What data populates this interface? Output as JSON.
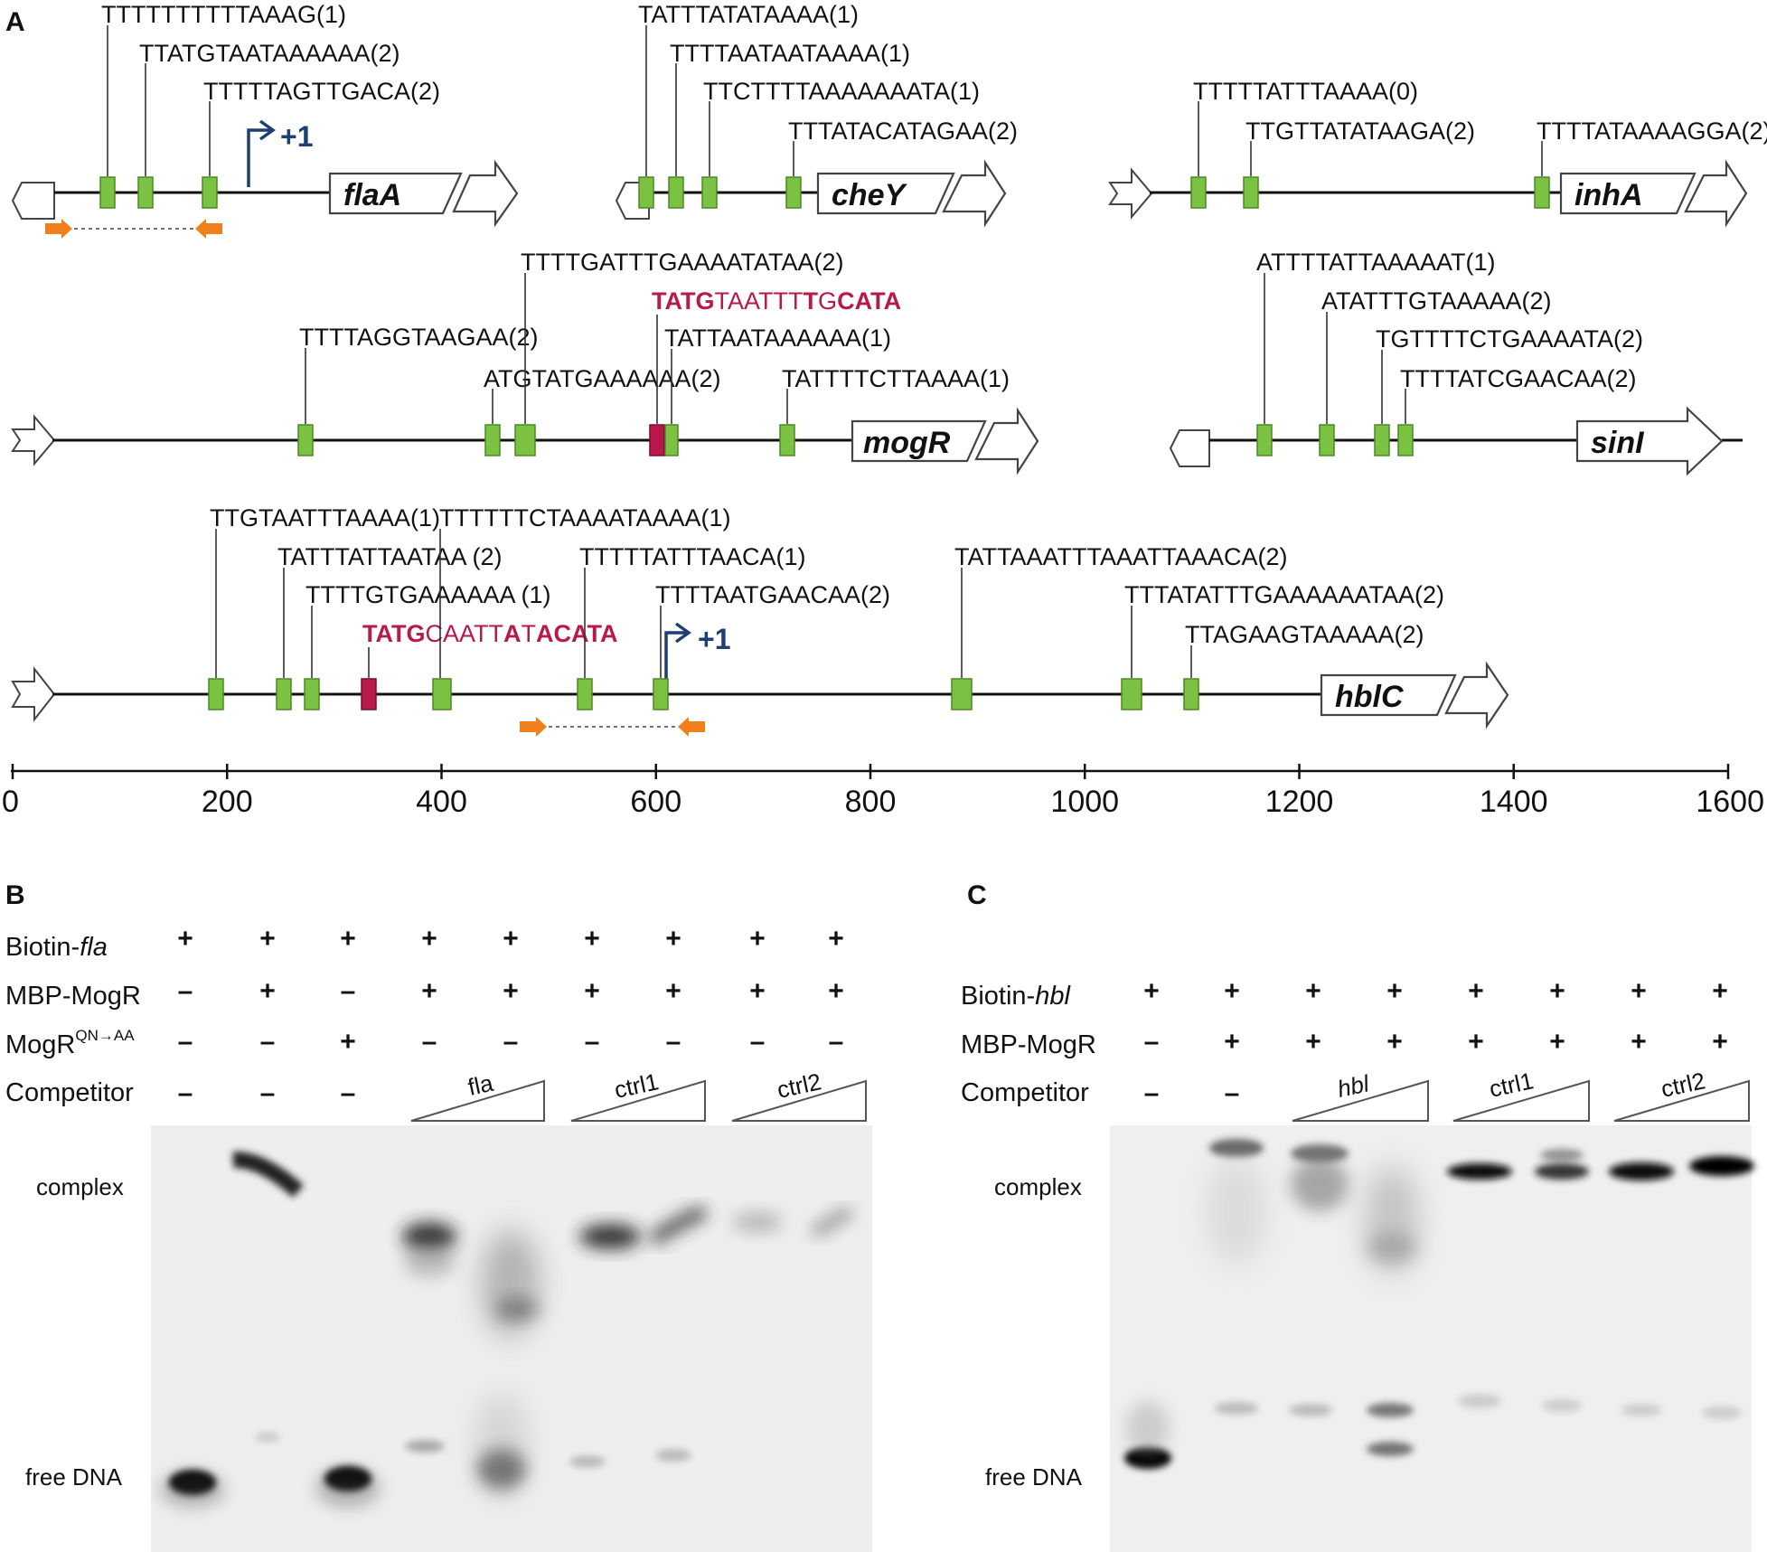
{
  "panels": {
    "a": "A",
    "b": "B",
    "c": "C"
  },
  "colors": {
    "site_green": "#7cc242",
    "site_red": "#b8184a",
    "primer_orange": "#f07f1c",
    "tss_blue": "#1e3f73",
    "highlight": "#b8184a"
  },
  "panel_a": {
    "axis": {
      "min": 0,
      "max": 1600,
      "ticks": [
        "0",
        "200",
        "400",
        "600",
        "800",
        "1000",
        "1200",
        "1400",
        "1600"
      ]
    },
    "tss_label": "+1",
    "loci": [
      {
        "gene": "flaA",
        "sites": [
          {
            "pos": 90,
            "label": "TTTTTTTTTTAAAG(1)"
          },
          {
            "pos": 126,
            "label": "TTATGTAATAAAAAA(2)"
          },
          {
            "pos": 186,
            "label": "TTTTTAGTTGACA(2)"
          }
        ]
      },
      {
        "gene": "cheY",
        "sites": [
          {
            "pos": 15,
            "label": "TATTTATATAAAA(1)"
          },
          {
            "pos": 45,
            "label": "TTTTAATAATAAAA(1)"
          },
          {
            "pos": 75,
            "label": "TTCTTTTAAAAAAATA(1)"
          },
          {
            "pos": 150,
            "label": "TTTATACATAGAA(2)"
          }
        ]
      },
      {
        "gene": "inhA",
        "sites": [
          {
            "pos": 85,
            "label": "TTTTTATTTAAAA(0)"
          },
          {
            "pos": 135,
            "label": "TTGTTATATAAGA(2)"
          },
          {
            "pos": 400,
            "label": "TTTTATAAAAGGA(2)"
          }
        ]
      },
      {
        "gene": "mogR",
        "sites": [
          {
            "pos": 275,
            "label": "TTTTAGGTAAGAA(2)"
          },
          {
            "pos": 445,
            "label": "ATGTATGAAAAAA(2)"
          },
          {
            "pos": 470,
            "label": "TTTTGATTTGAAAATATAA(2)"
          },
          {
            "pos": 612,
            "label": "TATTAATAAAAAA(1)"
          },
          {
            "pos": 720,
            "label": "TATTTTCTTAAAA(1)"
          }
        ],
        "red_site": {
          "pos": 598,
          "label": "TATGTAATTTTGCATA"
        }
      },
      {
        "gene": "sinI",
        "sites": [
          {
            "pos": 50,
            "label": "ATTTTATTAAAAAT(1)"
          },
          {
            "pos": 108,
            "label": "ATATTTGTAAAAA(2)"
          },
          {
            "pos": 158,
            "label": "TGTTTTCTGAAAATA(2)"
          },
          {
            "pos": 180,
            "label": "TTTTATCGAACAA(2)"
          }
        ]
      },
      {
        "gene": "hblC",
        "sites": [
          {
            "pos": 190,
            "label": "TTGTAATTTAAAA(1)"
          },
          {
            "pos": 253,
            "label": "TATTTATTAATAA (2)"
          },
          {
            "pos": 278,
            "label": "TTTTGTGAAAAAA (1)"
          },
          {
            "pos": 402,
            "label": "TTTTTTCTAAAATAAAA(1)"
          },
          {
            "pos": 535,
            "label": "TTTTTATTTAACA(1)"
          },
          {
            "pos": 605,
            "label": "TTTTAATGAACAA(2)"
          },
          {
            "pos": 887,
            "label": "TATTAAATTTAAATTAAACA(2)"
          },
          {
            "pos": 1045,
            "label": "TTTATATTTGAAAAAATAA(2)"
          },
          {
            "pos": 1100,
            "label": "TTAGAAGTAAAAA(2)"
          }
        ],
        "red_site": {
          "pos": 335,
          "label": "TATGCAATTATACATA"
        }
      }
    ]
  },
  "panel_b": {
    "rows": [
      {
        "label_parts": [
          "Biotin-",
          "fla"
        ],
        "signs": [
          "+",
          "+",
          "+",
          "+",
          "+",
          "+",
          "+",
          "+",
          "+"
        ]
      },
      {
        "label_parts": [
          "MBP-MogR",
          ""
        ],
        "signs": [
          "–",
          "+",
          "–",
          "+",
          "+",
          "+",
          "+",
          "+",
          "+"
        ]
      },
      {
        "label_parts": [
          "MogR",
          "QN→AA"
        ],
        "signs": [
          "–",
          "–",
          "+",
          "–",
          "–",
          "–",
          "–",
          "–",
          "–"
        ]
      },
      {
        "label_parts": [
          "Competitor",
          ""
        ],
        "signs": [
          "–",
          "–",
          "–",
          "",
          "",
          "",
          "",
          "",
          ""
        ]
      }
    ],
    "competitors": [
      "fla",
      "ctrl1",
      "ctrl2"
    ],
    "complex_label": "complex",
    "free_label": "free DNA"
  },
  "panel_c": {
    "rows": [
      {
        "label_parts": [
          "Biotin-",
          "hbl"
        ],
        "signs": [
          "+",
          "+",
          "+",
          "+",
          "+",
          "+",
          "+",
          "+"
        ]
      },
      {
        "label_parts": [
          "MBP-MogR",
          ""
        ],
        "signs": [
          "–",
          "+",
          "+",
          "+",
          "+",
          "+",
          "+",
          "+"
        ]
      },
      {
        "label_parts": [
          "Competitor",
          ""
        ],
        "signs": [
          "–",
          "–",
          "",
          "",
          "",
          "",
          "",
          ""
        ]
      }
    ],
    "competitors": [
      "hbl",
      "ctrl1",
      "ctrl2"
    ],
    "complex_label": "complex",
    "free_label": "free DNA"
  }
}
